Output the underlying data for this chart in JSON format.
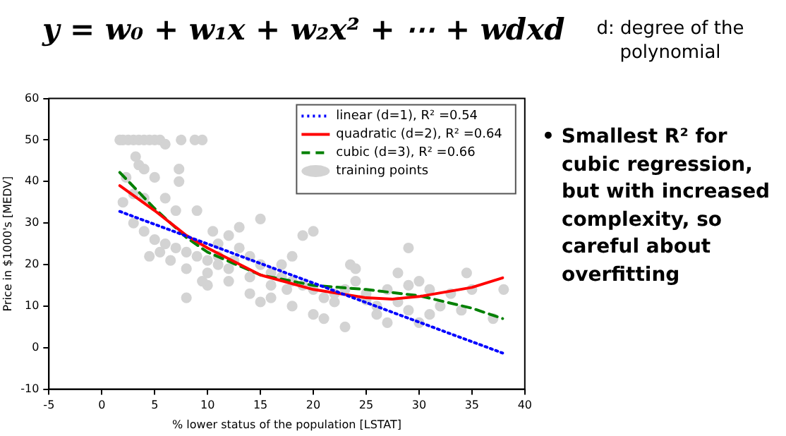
{
  "chart_data": {
    "type": "scatter",
    "title": "y = w₀ + w₁x + w₂x² + ⋯ + wdxd",
    "annotations": [
      "d: degree of the polynomial",
      "• Smallest R² for cubic regression, but with increased complexity, so careful about overfitting"
    ],
    "xlabel": "% lower status of the population [LSTAT]",
    "ylabel": "Price in $1000's [MEDV]",
    "xlim": [
      -5,
      40
    ],
    "xticks": [
      -5,
      0,
      5,
      10,
      15,
      20,
      25,
      30,
      35,
      40
    ],
    "ylim": [
      -10,
      60
    ],
    "yticks": [
      -10,
      0,
      10,
      20,
      30,
      40,
      50,
      60
    ],
    "legend": "top right",
    "series": [
      {
        "name": "linear (d=1), R² =0.54",
        "type": "line",
        "color": "#0000ff",
        "line_style": "dotted",
        "marker": "none",
        "x": [
          1.7,
          37.9
        ],
        "values": [
          32.8,
          -1.3
        ]
      },
      {
        "name": "quadratic (d=2), R² =0.64",
        "type": "line",
        "color": "#ff0000",
        "line_style": "solid",
        "marker": "none",
        "x": [
          1.7,
          5,
          8,
          10,
          15,
          20,
          25,
          27.5,
          30,
          35,
          37.9
        ],
        "values": [
          39,
          33,
          27,
          24,
          17.5,
          14,
          12,
          11.7,
          12.3,
          14.5,
          16.8
        ]
      },
      {
        "name": "cubic (d=3), R² =0.66",
        "type": "line",
        "color": "#008000",
        "line_style": "dashed",
        "marker": "none",
        "x": [
          1.7,
          5,
          8,
          10,
          15,
          20,
          25,
          30,
          35,
          37.9
        ],
        "values": [
          42.2,
          33.5,
          26.5,
          23,
          17.5,
          15,
          14,
          12.5,
          9.5,
          7
        ]
      },
      {
        "name": "training points",
        "type": "scatter",
        "color": "#d3d3d3",
        "marker": "circle",
        "x": [
          1.7,
          2,
          2.5,
          3,
          3.5,
          4,
          4.5,
          5,
          5.5,
          7.5,
          8.8,
          9.5,
          6,
          3.2,
          3.5,
          4,
          2.3,
          5,
          7.3,
          2,
          3,
          4,
          6,
          7,
          7.3,
          9,
          3,
          4,
          5,
          6,
          7,
          8,
          9,
          10,
          11,
          12,
          4.5,
          5.5,
          6.5,
          8,
          10,
          11,
          12,
          13,
          14,
          15,
          16,
          17,
          18,
          19,
          20,
          13,
          15,
          10,
          12,
          14,
          15,
          16,
          17,
          18,
          19,
          20,
          18,
          20,
          21,
          22,
          23,
          23,
          23.5,
          24,
          25,
          26,
          26,
          27,
          27,
          28,
          28,
          29,
          29,
          29,
          30,
          30,
          31,
          31,
          32,
          33,
          34,
          34.5,
          35,
          37,
          38,
          8,
          9.5,
          10.5,
          11,
          12.5,
          14,
          16,
          17.5,
          21,
          22,
          24,
          25
        ],
        "values": [
          50,
          50,
          50,
          50,
          50,
          50,
          50,
          50,
          50,
          50,
          50,
          50,
          49,
          46,
          44,
          43,
          41,
          41,
          43,
          35,
          37,
          36,
          36,
          33,
          40,
          33,
          30,
          28,
          26,
          25,
          24,
          23,
          22,
          21,
          20,
          19,
          22,
          23,
          21,
          19,
          18,
          25,
          27,
          24,
          22,
          20,
          18,
          17,
          16,
          15,
          14,
          29,
          31,
          15,
          16,
          13,
          11,
          12,
          20,
          22,
          27,
          28,
          10,
          8,
          7,
          11,
          14,
          5,
          20,
          19,
          13,
          10,
          8,
          6,
          14,
          11,
          18,
          9,
          15,
          24,
          16,
          6,
          8,
          14,
          10,
          13,
          9,
          18,
          14,
          7,
          14,
          12,
          16,
          28,
          22,
          21,
          17,
          15,
          14,
          12,
          13,
          16,
          11.5
        ]
      }
    ]
  }
}
